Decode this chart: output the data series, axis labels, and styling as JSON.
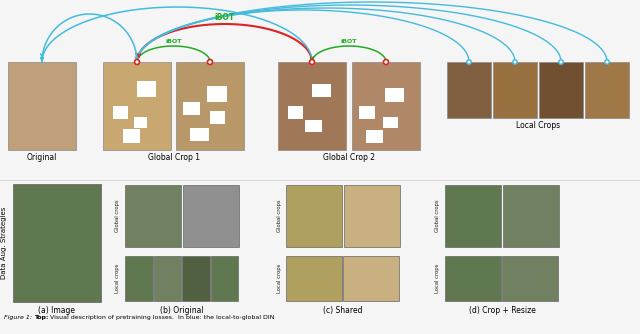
{
  "bg_color": "#f5f5f5",
  "red_arc_color": "#dd2222",
  "blue_arc_color": "#44bbdd",
  "green_color": "#22aa22",
  "ibot_label": "iBOT",
  "label_original": "Original",
  "label_gc1": "Global Crop 1",
  "label_gc2": "Global Crop 2",
  "label_lc": "Local Crops",
  "label_global_crops": "Global crops",
  "label_local_crops": "Local crops",
  "bottom_subfig_labels": [
    "(a) Image",
    "(b) Original",
    "(c) Shared",
    "(d) Crop + Resize"
  ],
  "side_label": "Data Aug. Strategies",
  "caption_prefix": "Figure 1: ",
  "caption_bold": "Top:",
  "caption_rest": " Visual description of pretraining losses.  In blue: the local-to-global DIN",
  "dog_orig": "#c0a07a",
  "dog_gc1a": "#c8a870",
  "dog_gc1b": "#b89868",
  "dog_gc2a": "#a07858",
  "dog_gc2b": "#b08868",
  "dog_lc0": "#806040",
  "dog_lc1": "#987040",
  "dog_lc2": "#705030",
  "dog_lc3": "#a07848",
  "tractor_green": "#607850",
  "tractor_green2": "#708060",
  "tractor_gray": "#909090",
  "tractor_yellow": "#b0a060",
  "tractor_sand": "#c8b080",
  "tractor_lc_green": "#506040"
}
